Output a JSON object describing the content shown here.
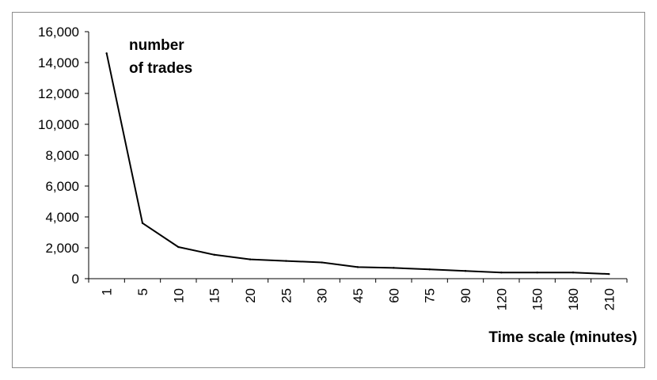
{
  "chart_data": {
    "type": "line",
    "annotation": [
      "number",
      "of trades"
    ],
    "xlabel": "Time scale (minutes)",
    "ylabel": "",
    "categories": [
      "1",
      "5",
      "10",
      "15",
      "20",
      "25",
      "30",
      "45",
      "60",
      "75",
      "90",
      "120",
      "150",
      "180",
      "210"
    ],
    "series": [
      {
        "values": [
          14600,
          3600,
          2050,
          1550,
          1250,
          1150,
          1050,
          750,
          700,
          600,
          500,
          400,
          400,
          400,
          300
        ],
        "color": "#000000"
      }
    ],
    "yticks": [
      "0",
      "2,000",
      "4,000",
      "6,000",
      "8,000",
      "10,000",
      "12,000",
      "14,000",
      "16,000"
    ],
    "ylim": [
      0,
      16000
    ],
    "grid": false,
    "legend": "none"
  }
}
